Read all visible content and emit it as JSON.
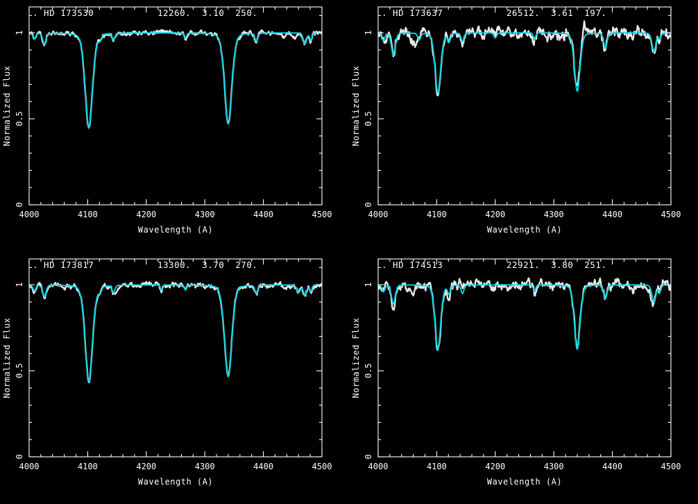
{
  "figure": {
    "background": "#000000",
    "foreground": "#ffffff",
    "observed_color": "#e8e8e8",
    "model_color": "#00d7e2",
    "description": "2x2 grid of normalized stellar spectra (white: observed, cyan: model fit)"
  },
  "chart_data": [
    {
      "type": "line",
      "label": ". HD 173530",
      "star": "HD 173530",
      "params": [
        "12260.",
        "3.10",
        "250."
      ],
      "teff": 12260,
      "logg": 3.1,
      "vsini": 250,
      "xlabel": "Wavelength (A)",
      "ylabel": "Normalized Flux",
      "xlim": [
        4000,
        4500
      ],
      "ylim": [
        0,
        1.15
      ],
      "xticks": [
        4000,
        4100,
        4200,
        4300,
        4400,
        4500
      ],
      "yticks": [
        0,
        0.5,
        1
      ],
      "ytick_labels": [
        "0",
        "0.5",
        "1"
      ],
      "x_minor_step": 20,
      "y_minor_step": 0.1,
      "line_format": [
        "center_angstrom",
        "core_depth",
        "sigma_angstrom"
      ],
      "series": [
        {
          "name": "observed",
          "color": "#e8e8e8",
          "noise": 0.012,
          "lines": [
            [
              4009,
              0.035,
              2.5
            ],
            [
              4026,
              0.065,
              3
            ],
            [
              4102,
              0.555,
              6.5
            ],
            [
              4121,
              0.03,
              2.5
            ],
            [
              4144,
              0.04,
              2.5
            ],
            [
              4267,
              0.03,
              2
            ],
            [
              4340,
              0.53,
              6.5
            ],
            [
              4388,
              0.05,
              2.5
            ],
            [
              4435,
              0.03,
              3
            ],
            [
              4455,
              0.03,
              3
            ],
            [
              4471,
              0.065,
              3
            ],
            [
              4481,
              0.045,
              2
            ]
          ]
        },
        {
          "name": "model",
          "color": "#00d7e2",
          "noise": 0,
          "lines": [
            [
              4009,
              0.035,
              2.5
            ],
            [
              4026,
              0.065,
              3
            ],
            [
              4102,
              0.555,
              6.5
            ],
            [
              4121,
              0.03,
              2.5
            ],
            [
              4144,
              0.04,
              2.5
            ],
            [
              4267,
              0.03,
              2
            ],
            [
              4340,
              0.53,
              6.5
            ],
            [
              4388,
              0.05,
              2.5
            ],
            [
              4471,
              0.065,
              3
            ],
            [
              4481,
              0.045,
              2
            ]
          ]
        }
      ]
    },
    {
      "type": "line",
      "label": ". HD 173637",
      "star": "HD 173637",
      "params": [
        "26512.",
        "3.61",
        "197."
      ],
      "teff": 26512,
      "logg": 3.61,
      "vsini": 197,
      "xlabel": "Wavelength (A)",
      "ylabel": "Normalized Flux",
      "xlim": [
        4000,
        4500
      ],
      "ylim": [
        0,
        1.15
      ],
      "xticks": [
        4000,
        4100,
        4200,
        4300,
        4400,
        4500
      ],
      "yticks": [
        0,
        0.5,
        1
      ],
      "ytick_labels": [
        "0",
        "0.5",
        "1"
      ],
      "x_minor_step": 20,
      "y_minor_step": 0.1,
      "line_format": [
        "center_angstrom",
        "core_depth",
        "sigma_angstrom"
      ],
      "series": [
        {
          "name": "observed",
          "color": "#e8e8e8",
          "noise": 0.03,
          "lines": [
            [
              4009,
              0.05,
              2.5
            ],
            [
              4026,
              0.14,
              3.5
            ],
            [
              4063,
              0.06,
              5
            ],
            [
              4102,
              0.37,
              5
            ],
            [
              4121,
              0.05,
              2.5
            ],
            [
              4144,
              0.05,
              2.5
            ],
            [
              4200,
              0.03,
              2.5
            ],
            [
              4267,
              0.04,
              2
            ],
            [
              4340,
              0.34,
              5
            ],
            [
              4352,
              -0.09,
              2.5
            ],
            [
              4388,
              0.09,
              3
            ],
            [
              4435,
              0.04,
              3
            ],
            [
              4471,
              0.11,
              3.5
            ],
            [
              4481,
              0.035,
              2
            ]
          ]
        },
        {
          "name": "model",
          "color": "#00d7e2",
          "noise": 0,
          "lines": [
            [
              4009,
              0.045,
              2.5
            ],
            [
              4026,
              0.13,
              3.5
            ],
            [
              4070,
              0.04,
              2.5
            ],
            [
              4102,
              0.35,
              5
            ],
            [
              4121,
              0.05,
              2.5
            ],
            [
              4144,
              0.05,
              2.5
            ],
            [
              4200,
              0.03,
              2.5
            ],
            [
              4267,
              0.04,
              2
            ],
            [
              4340,
              0.34,
              5
            ],
            [
              4388,
              0.09,
              3
            ],
            [
              4471,
              0.11,
              3.5
            ],
            [
              4481,
              0.035,
              2
            ]
          ]
        }
      ]
    },
    {
      "type": "line",
      "label": ". HD 173817",
      "star": "HD 173817",
      "params": [
        "13300.",
        "3.70",
        "270."
      ],
      "teff": 13300,
      "logg": 3.7,
      "vsini": 270,
      "xlabel": "Wavelength (A)",
      "ylabel": "Normalized Flux",
      "xlim": [
        4000,
        4500
      ],
      "ylim": [
        0,
        1.15
      ],
      "xticks": [
        4000,
        4100,
        4200,
        4300,
        4400,
        4500
      ],
      "yticks": [
        0,
        0.5,
        1
      ],
      "ytick_labels": [
        "0",
        "0.5",
        "1"
      ],
      "x_minor_step": 20,
      "y_minor_step": 0.1,
      "line_format": [
        "center_angstrom",
        "core_depth",
        "sigma_angstrom"
      ],
      "series": [
        {
          "name": "observed",
          "color": "#e8e8e8",
          "noise": 0.013,
          "lines": [
            [
              4009,
              0.035,
              2.5
            ],
            [
              4026,
              0.07,
              3
            ],
            [
              4102,
              0.565,
              6.5
            ],
            [
              4121,
              0.035,
              2.5
            ],
            [
              4144,
              0.045,
              2.5
            ],
            [
              4150,
              0.035,
              2.5
            ],
            [
              4226,
              0.03,
              2
            ],
            [
              4267,
              0.03,
              2
            ],
            [
              4340,
              0.535,
              6.5
            ],
            [
              4388,
              0.05,
              2.5
            ],
            [
              4460,
              0.045,
              3
            ],
            [
              4471,
              0.06,
              3
            ],
            [
              4481,
              0.04,
              2
            ]
          ]
        },
        {
          "name": "model",
          "color": "#00d7e2",
          "noise": 0,
          "lines": [
            [
              4009,
              0.035,
              2.5
            ],
            [
              4026,
              0.07,
              3
            ],
            [
              4102,
              0.565,
              6.5
            ],
            [
              4121,
              0.035,
              2.5
            ],
            [
              4144,
              0.045,
              2.5
            ],
            [
              4226,
              0.03,
              2
            ],
            [
              4267,
              0.03,
              2
            ],
            [
              4340,
              0.535,
              6.5
            ],
            [
              4388,
              0.05,
              2.5
            ],
            [
              4460,
              0.045,
              3
            ],
            [
              4471,
              0.06,
              3
            ],
            [
              4481,
              0.04,
              2
            ]
          ]
        }
      ]
    },
    {
      "type": "line",
      "label": ". HD 174513",
      "star": "HD 174513",
      "params": [
        "22921.",
        "3.80",
        "251."
      ],
      "teff": 22921,
      "logg": 3.8,
      "vsini": 251,
      "xlabel": "Wavelength (A)",
      "ylabel": "Normalized Flux",
      "xlim": [
        4000,
        4500
      ],
      "ylim": [
        0,
        1.15
      ],
      "xticks": [
        4000,
        4100,
        4200,
        4300,
        4400,
        4500
      ],
      "yticks": [
        0,
        0.5,
        1
      ],
      "ytick_labels": [
        "0",
        "0.5",
        "1"
      ],
      "x_minor_step": 20,
      "y_minor_step": 0.1,
      "line_format": [
        "center_angstrom",
        "core_depth",
        "sigma_angstrom"
      ],
      "series": [
        {
          "name": "observed",
          "color": "#e8e8e8",
          "noise": 0.026,
          "lines": [
            [
              4009,
              0.05,
              2.5
            ],
            [
              4026,
              0.13,
              3.5
            ],
            [
              4060,
              0.05,
              4
            ],
            [
              4102,
              0.4,
              5
            ],
            [
              4121,
              0.05,
              2.5
            ],
            [
              4144,
              0.05,
              2.5
            ],
            [
              4267,
              0.04,
              2
            ],
            [
              4340,
              0.38,
              5
            ],
            [
              4388,
              0.08,
              3
            ],
            [
              4435,
              0.04,
              3
            ],
            [
              4470,
              0.12,
              3.5
            ],
            [
              4481,
              0.04,
              2
            ]
          ]
        },
        {
          "name": "model",
          "color": "#00d7e2",
          "noise": 0,
          "lines": [
            [
              4009,
              0.04,
              2.5
            ],
            [
              4026,
              0.11,
              3.5
            ],
            [
              4102,
              0.38,
              5
            ],
            [
              4121,
              0.05,
              2.5
            ],
            [
              4144,
              0.05,
              2.5
            ],
            [
              4267,
              0.04,
              2
            ],
            [
              4340,
              0.375,
              5
            ],
            [
              4388,
              0.08,
              3
            ],
            [
              4471,
              0.1,
              3.5
            ],
            [
              4481,
              0.04,
              2
            ]
          ]
        }
      ]
    }
  ]
}
